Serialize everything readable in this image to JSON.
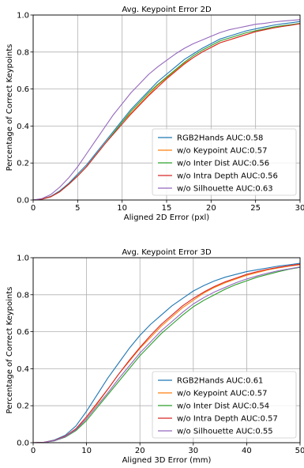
{
  "chart_data": [
    {
      "type": "line",
      "title": "Avg. Keypoint Error 2D",
      "xlabel": "Aligned 2D Error (pxl)",
      "ylabel": "Percentage of Correct Keypoints",
      "xlim": [
        0,
        30
      ],
      "ylim": [
        0,
        1.0
      ],
      "xticks": [
        0,
        5,
        10,
        15,
        20,
        25,
        30
      ],
      "yticks": [
        0.0,
        0.2,
        0.4,
        0.6,
        0.8,
        1.0
      ],
      "grid": true,
      "legend_position": "bottom-right",
      "x": [
        0,
        1,
        2,
        3,
        4,
        5,
        6,
        7,
        8,
        9,
        10,
        11,
        12,
        13,
        14,
        15,
        16,
        17,
        18,
        19,
        20,
        21,
        22,
        23,
        24,
        25,
        26,
        27,
        28,
        29,
        30
      ],
      "series": [
        {
          "name": "RGB2Hands AUC:0.58",
          "color": "#1f77b4",
          "values": [
            0.0,
            0.005,
            0.02,
            0.05,
            0.09,
            0.14,
            0.19,
            0.25,
            0.31,
            0.37,
            0.43,
            0.49,
            0.54,
            0.59,
            0.64,
            0.68,
            0.72,
            0.76,
            0.79,
            0.82,
            0.845,
            0.87,
            0.885,
            0.9,
            0.915,
            0.925,
            0.935,
            0.945,
            0.952,
            0.958,
            0.965
          ]
        },
        {
          "name": "w/o Keypoint AUC:0.57",
          "color": "#ff7f0e",
          "values": [
            0.0,
            0.005,
            0.018,
            0.045,
            0.085,
            0.13,
            0.18,
            0.24,
            0.3,
            0.36,
            0.42,
            0.47,
            0.52,
            0.57,
            0.62,
            0.66,
            0.7,
            0.74,
            0.77,
            0.8,
            0.825,
            0.85,
            0.865,
            0.88,
            0.895,
            0.91,
            0.92,
            0.93,
            0.938,
            0.945,
            0.953
          ]
        },
        {
          "name": "w/o Inter Dist AUC:0.56",
          "color": "#2ca02c",
          "values": [
            0.0,
            0.005,
            0.018,
            0.045,
            0.085,
            0.13,
            0.18,
            0.24,
            0.3,
            0.36,
            0.42,
            0.48,
            0.53,
            0.58,
            0.625,
            0.665,
            0.705,
            0.745,
            0.78,
            0.81,
            0.835,
            0.86,
            0.875,
            0.89,
            0.905,
            0.915,
            0.925,
            0.935,
            0.942,
            0.948,
            0.955
          ]
        },
        {
          "name": "w/o Intra Depth AUC:0.56",
          "color": "#d62728",
          "values": [
            0.0,
            0.005,
            0.018,
            0.045,
            0.085,
            0.13,
            0.18,
            0.24,
            0.3,
            0.355,
            0.41,
            0.465,
            0.515,
            0.565,
            0.61,
            0.655,
            0.695,
            0.735,
            0.77,
            0.8,
            0.825,
            0.85,
            0.865,
            0.88,
            0.895,
            0.91,
            0.92,
            0.93,
            0.938,
            0.945,
            0.953
          ]
        },
        {
          "name": "w/o Silhouette AUC:0.63",
          "color": "#9467bd",
          "values": [
            0.0,
            0.008,
            0.03,
            0.07,
            0.12,
            0.18,
            0.25,
            0.32,
            0.39,
            0.46,
            0.52,
            0.58,
            0.63,
            0.68,
            0.72,
            0.755,
            0.79,
            0.82,
            0.845,
            0.865,
            0.885,
            0.905,
            0.92,
            0.93,
            0.94,
            0.95,
            0.955,
            0.962,
            0.967,
            0.971,
            0.975
          ]
        }
      ]
    },
    {
      "type": "line",
      "title": "Avg. Keypoint Error 3D",
      "xlabel": "Aligned 3D Error (mm)",
      "ylabel": "Percentage of Correct Keypoints",
      "xlim": [
        0,
        50
      ],
      "ylim": [
        0,
        1.0
      ],
      "xticks": [
        0,
        10,
        20,
        30,
        40,
        50
      ],
      "yticks": [
        0.0,
        0.2,
        0.4,
        0.6,
        0.8,
        1.0
      ],
      "grid": true,
      "legend_position": "bottom-right",
      "x": [
        0,
        2,
        4,
        6,
        8,
        10,
        12,
        14,
        16,
        18,
        20,
        22,
        24,
        26,
        28,
        30,
        32,
        34,
        36,
        38,
        40,
        42,
        44,
        46,
        48,
        50
      ],
      "series": [
        {
          "name": "RGB2Hands AUC:0.61",
          "color": "#1f77b4",
          "values": [
            0.0,
            0.002,
            0.015,
            0.04,
            0.09,
            0.17,
            0.26,
            0.35,
            0.43,
            0.51,
            0.58,
            0.64,
            0.69,
            0.74,
            0.78,
            0.82,
            0.85,
            0.875,
            0.895,
            0.91,
            0.925,
            0.935,
            0.945,
            0.955,
            0.962,
            0.97
          ]
        },
        {
          "name": "w/o Keypoint AUC:0.57",
          "color": "#ff7f0e",
          "values": [
            0.0,
            0.002,
            0.012,
            0.035,
            0.075,
            0.14,
            0.21,
            0.29,
            0.37,
            0.44,
            0.51,
            0.57,
            0.63,
            0.68,
            0.73,
            0.77,
            0.81,
            0.84,
            0.865,
            0.885,
            0.905,
            0.92,
            0.935,
            0.945,
            0.955,
            0.962
          ]
        },
        {
          "name": "w/o Inter Dist AUC:0.54",
          "color": "#2ca02c",
          "values": [
            0.0,
            0.002,
            0.01,
            0.03,
            0.065,
            0.12,
            0.19,
            0.26,
            0.33,
            0.4,
            0.47,
            0.53,
            0.59,
            0.64,
            0.69,
            0.735,
            0.77,
            0.8,
            0.83,
            0.855,
            0.875,
            0.895,
            0.91,
            0.925,
            0.938,
            0.948
          ]
        },
        {
          "name": "w/o Intra Depth AUC:0.57",
          "color": "#d62728",
          "values": [
            0.0,
            0.002,
            0.012,
            0.035,
            0.075,
            0.14,
            0.215,
            0.29,
            0.37,
            0.445,
            0.515,
            0.58,
            0.64,
            0.69,
            0.74,
            0.78,
            0.815,
            0.845,
            0.87,
            0.89,
            0.91,
            0.925,
            0.938,
            0.948,
            0.957,
            0.965
          ]
        },
        {
          "name": "w/o Silhouette AUC:0.55",
          "color": "#9467bd",
          "values": [
            0.0,
            0.002,
            0.011,
            0.032,
            0.07,
            0.13,
            0.2,
            0.27,
            0.345,
            0.415,
            0.485,
            0.545,
            0.605,
            0.655,
            0.705,
            0.75,
            0.785,
            0.815,
            0.84,
            0.865,
            0.885,
            0.902,
            0.917,
            0.93,
            0.94,
            0.95
          ]
        }
      ]
    }
  ]
}
